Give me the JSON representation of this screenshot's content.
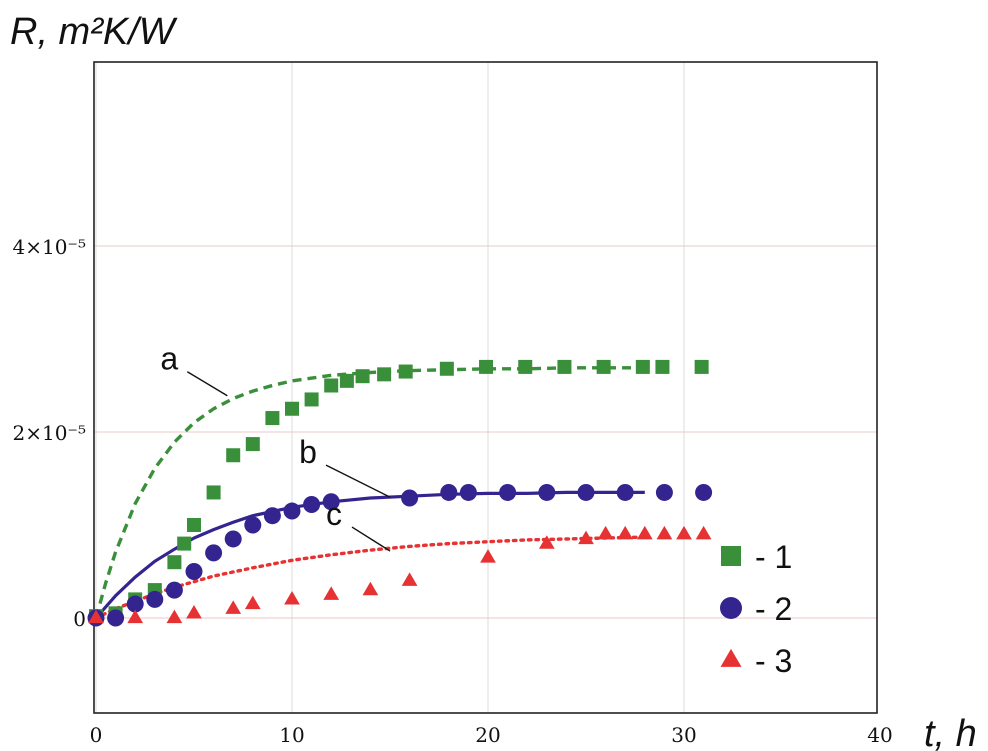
{
  "chart_data": {
    "type": "scatter",
    "title": "",
    "xlabel": "t, h",
    "ylabel": "R, m²K/W",
    "xlim": [
      0,
      40
    ],
    "ylim": [
      -1e-05,
      3e-05
    ],
    "x_ticks": [
      0,
      10,
      20,
      30,
      40
    ],
    "x_tick_labels": [
      "0",
      "10",
      "20",
      "30",
      "40"
    ],
    "y_ticks": [
      0,
      2e-05,
      4e-05
    ],
    "y_tick_labels": [
      "0",
      "2×10⁻⁵",
      "4×10⁻⁵"
    ],
    "grid": true,
    "legend_position": "bottom-right",
    "series": [
      {
        "name": "- 1",
        "kind": "points",
        "marker": "square",
        "color": "#3a8f3a",
        "x": [
          0,
          1,
          2,
          3,
          4,
          4.5,
          5,
          6,
          7,
          8,
          9,
          10,
          11,
          12,
          12.8,
          13.6,
          14.7,
          15.8,
          17.9,
          19.9,
          21.9,
          23.9,
          25.9,
          27.9,
          28.9,
          30.9
        ],
        "y": [
          2e-07,
          5e-07,
          2e-06,
          3e-06,
          6e-06,
          8e-06,
          1e-05,
          1.35e-05,
          1.75e-05,
          1.87e-05,
          2.15e-05,
          2.25e-05,
          2.35e-05,
          2.5e-05,
          2.55e-05,
          2.6e-05,
          2.62e-05,
          2.65e-05,
          2.68e-05,
          2.7e-05,
          2.7e-05,
          2.7e-05,
          2.7e-05,
          2.7e-05,
          2.7e-05,
          2.7e-05
        ]
      },
      {
        "name": "- 2",
        "kind": "points",
        "marker": "circle",
        "color": "#33248f",
        "x": [
          0,
          1,
          2,
          3,
          4,
          5,
          6,
          7,
          8,
          9,
          10,
          11,
          12,
          16,
          18,
          19,
          21,
          23,
          25,
          27,
          29,
          31
        ],
        "y": [
          0,
          0,
          1.5e-06,
          2e-06,
          3e-06,
          5e-06,
          7e-06,
          8.5e-06,
          1e-05,
          1.1e-05,
          1.15e-05,
          1.22e-05,
          1.25e-05,
          1.29e-05,
          1.35e-05,
          1.35e-05,
          1.35e-05,
          1.35e-05,
          1.35e-05,
          1.35e-05,
          1.35e-05,
          1.35e-05
        ]
      },
      {
        "name": "- 3",
        "kind": "points",
        "marker": "triangle",
        "color": "#e63232",
        "x": [
          0,
          2,
          4,
          5,
          7,
          8,
          10,
          12,
          14,
          16,
          20,
          23,
          25,
          26,
          27,
          28,
          29,
          30,
          31
        ],
        "y": [
          0,
          0,
          0,
          5e-07,
          1e-06,
          1.5e-06,
          2e-06,
          2.5e-06,
          3e-06,
          4e-06,
          6.5e-06,
          8e-06,
          8.5e-06,
          9e-06,
          9e-06,
          9e-06,
          9e-06,
          9e-06,
          9e-06
        ]
      },
      {
        "name": "",
        "kind": "line",
        "dash": "dashed",
        "label": "a",
        "color": "#3a8f3a",
        "x": [
          0,
          0.5,
          1,
          2,
          3,
          4,
          5,
          6,
          7,
          8,
          9,
          10,
          12,
          14,
          16,
          18,
          20,
          22,
          24,
          26,
          28
        ],
        "y": [
          0,
          3.8e-06,
          7.1e-06,
          1.23e-05,
          1.61e-05,
          1.89e-05,
          2.1e-05,
          2.25e-05,
          2.36e-05,
          2.44e-05,
          2.5e-05,
          2.55e-05,
          2.61e-05,
          2.64e-05,
          2.66e-05,
          2.67e-05,
          2.68e-05,
          2.68e-05,
          2.69e-05,
          2.69e-05,
          2.69e-05
        ]
      },
      {
        "name": "",
        "kind": "line",
        "dash": "solid",
        "label": "b",
        "color": "#33248f",
        "x": [
          0,
          1,
          2,
          3,
          4,
          5,
          6,
          7,
          8,
          10,
          12,
          14,
          16,
          18,
          20,
          22,
          24,
          26,
          28
        ],
        "y": [
          0,
          2.4e-06,
          4.4e-06,
          6.1e-06,
          7.4e-06,
          8.6e-06,
          9.5e-06,
          1.03e-05,
          1.1e-05,
          1.19e-05,
          1.25e-05,
          1.29e-05,
          1.31e-05,
          1.33e-05,
          1.34e-05,
          1.34e-05,
          1.35e-05,
          1.35e-05,
          1.35e-05
        ]
      },
      {
        "name": "",
        "kind": "line",
        "dash": "dotted",
        "label": "c",
        "color": "#e63232",
        "x": [
          0,
          1,
          2,
          3,
          4,
          5,
          6,
          8,
          10,
          12,
          14,
          16,
          18,
          20,
          22,
          24,
          26,
          28
        ],
        "y": [
          0,
          1e-06,
          1.8e-06,
          2.6e-06,
          3.3e-06,
          3.9e-06,
          4.5e-06,
          5.4e-06,
          6.2e-06,
          6.8e-06,
          7.3e-06,
          7.7e-06,
          8e-06,
          8.2e-06,
          8.4e-06,
          8.5e-06,
          8.6e-06,
          8.7e-06
        ]
      }
    ],
    "annotations": [
      {
        "text": "a",
        "x": 6.7,
        "y": 2.39e-05,
        "series": 3
      },
      {
        "text": "b",
        "x": 15,
        "y": 1.3e-05,
        "series": 4
      },
      {
        "text": "c",
        "x": 15,
        "y": 7.2e-06,
        "series": 5
      }
    ]
  }
}
